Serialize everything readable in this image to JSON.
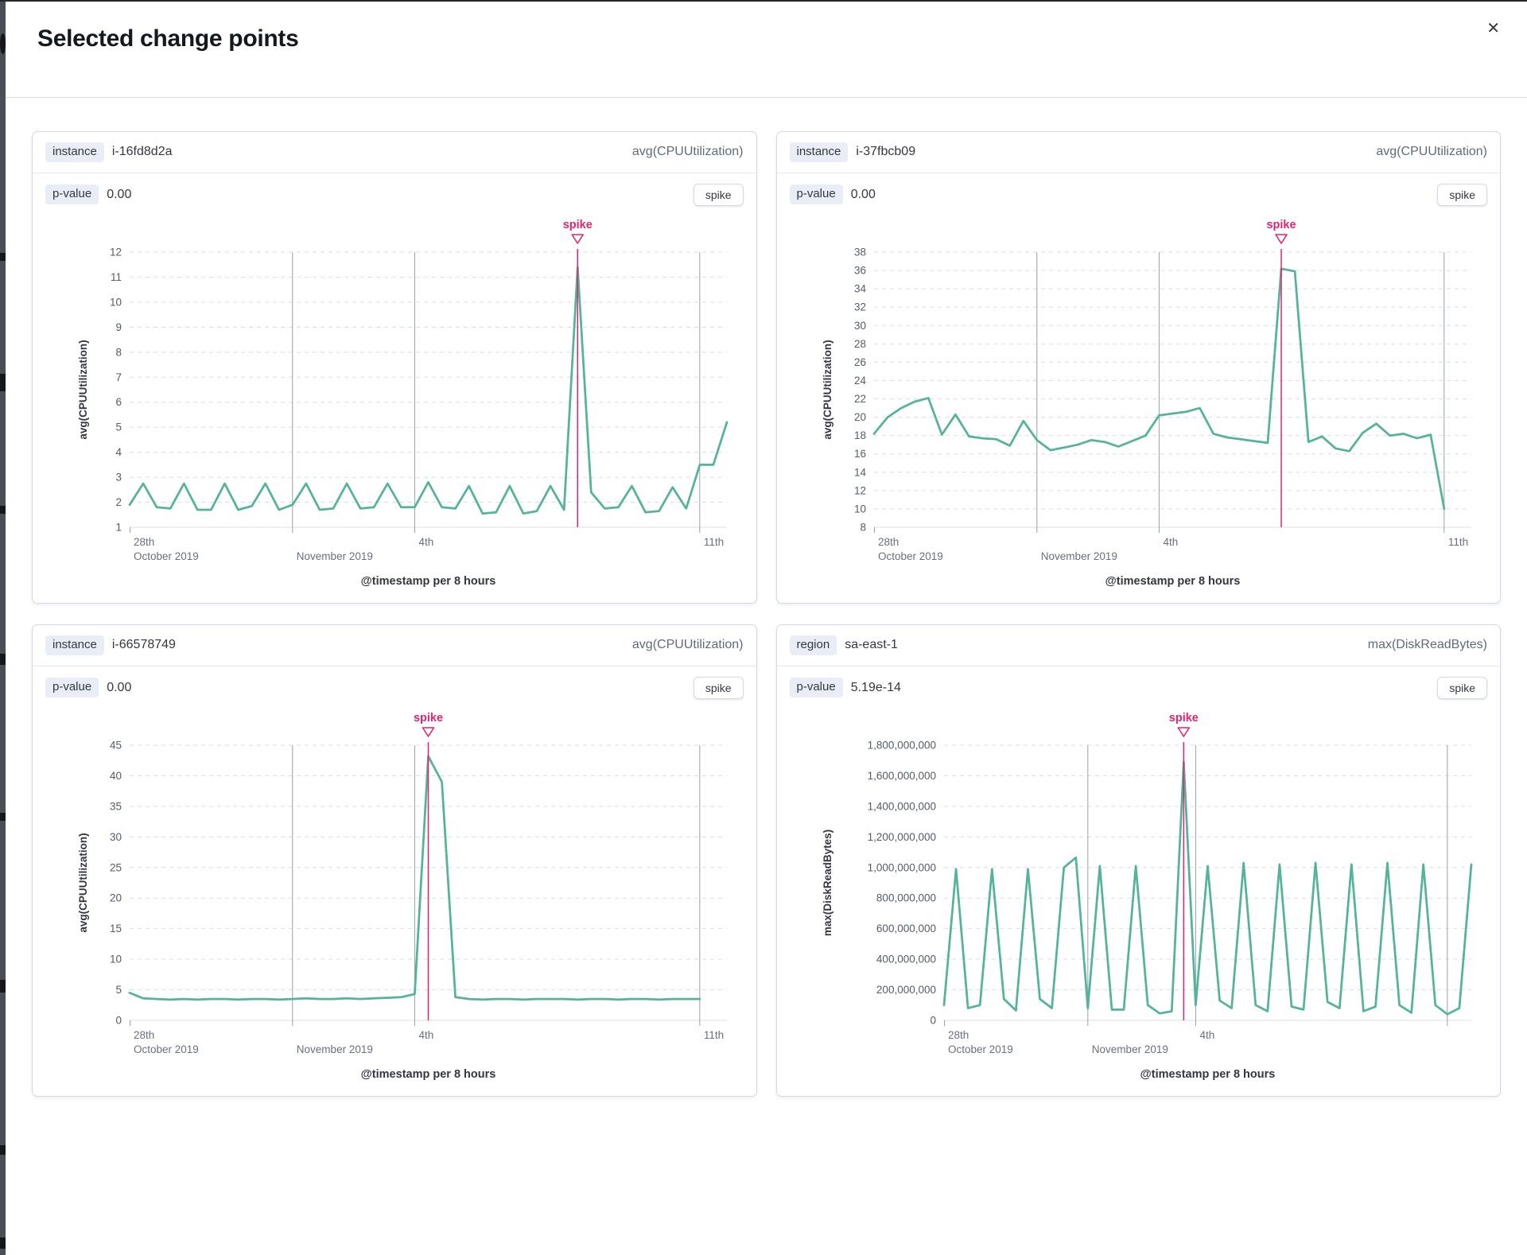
{
  "header": {
    "title": "Selected change points",
    "close_icon": "✕"
  },
  "theme": {
    "line": "#54b399",
    "accent": "#e0256f",
    "grid_dashed": "#d9dde8",
    "date_line": "#99a1ad",
    "axis_line": "#dfe3ea",
    "y_tick_text": "#545c68",
    "x_tick_text": "#69707d",
    "axis_title_text": "#343741"
  },
  "panels": [
    {
      "key_label": "instance",
      "key_value": "i-16fd8d2a",
      "metric": "avg(CPUUtilization)",
      "pvalue_label": "p-value",
      "pvalue": "0.00",
      "button_label": "spike"
    },
    {
      "key_label": "instance",
      "key_value": "i-37fbcb09",
      "metric": "avg(CPUUtilization)",
      "pvalue_label": "p-value",
      "pvalue": "0.00",
      "button_label": "spike"
    },
    {
      "key_label": "instance",
      "key_value": "i-66578749",
      "metric": "avg(CPUUtilization)",
      "pvalue_label": "p-value",
      "pvalue": "0.00",
      "button_label": "spike"
    },
    {
      "key_label": "region",
      "key_value": "sa-east-1",
      "metric": "max(DiskReadBytes)",
      "pvalue_label": "p-value",
      "pvalue": "5.19e-14",
      "button_label": "spike"
    }
  ],
  "chart_data": [
    {
      "type": "line",
      "title": "instance i-16fd8d2a avg(CPUUtilization)",
      "ylabel": "avg(CPUUtilization)",
      "xlabel": "@timestamp per 8 hours",
      "annotation": "spike",
      "spike_f": 0.75,
      "y_min": 1,
      "y_max": 12,
      "y_step": 1,
      "y_format": "plain",
      "n_slots": 45,
      "x_ticks": [
        {
          "f": 0,
          "l1": "28th",
          "l2": "October 2019",
          "tick": true
        },
        {
          "f": 0.2727,
          "l2": "November 2019",
          "line": true
        },
        {
          "f": 0.4773,
          "l1": "4th",
          "line": true
        },
        {
          "f": 0.9545,
          "l1": "11th",
          "line": true
        }
      ],
      "series": [
        1.9,
        2.75,
        1.8,
        1.75,
        2.75,
        1.7,
        1.7,
        2.75,
        1.7,
        1.85,
        2.75,
        1.7,
        1.9,
        2.75,
        1.7,
        1.75,
        2.75,
        1.75,
        1.8,
        2.75,
        1.8,
        1.8,
        2.8,
        1.8,
        1.75,
        2.65,
        1.55,
        1.6,
        2.65,
        1.55,
        1.65,
        2.65,
        1.7,
        11.4,
        2.4,
        1.75,
        1.8,
        2.65,
        1.6,
        1.65,
        2.6,
        1.75,
        3.5,
        3.5,
        5.2
      ]
    },
    {
      "type": "line",
      "title": "instance i-37fbcb09 avg(CPUUtilization)",
      "ylabel": "avg(CPUUtilization)",
      "xlabel": "@timestamp per 8 hours",
      "annotation": "spike",
      "spike_f": 0.6818,
      "y_min": 8,
      "y_max": 38,
      "y_step": 2,
      "y_format": "plain",
      "n_slots": 45,
      "x_ticks": [
        {
          "f": 0,
          "l1": "28th",
          "l2": "October 2019",
          "tick": true
        },
        {
          "f": 0.2727,
          "l2": "November 2019",
          "line": true
        },
        {
          "f": 0.4773,
          "l1": "4th",
          "line": true
        },
        {
          "f": 0.9545,
          "l1": "11th",
          "line": true
        }
      ],
      "series": [
        18.2,
        20.0,
        21.0,
        21.7,
        22.1,
        18.1,
        20.3,
        17.9,
        17.7,
        17.6,
        16.9,
        19.6,
        17.5,
        16.4,
        16.7,
        17.0,
        17.5,
        17.3,
        16.8,
        17.4,
        18.0,
        20.2,
        20.4,
        20.6,
        21.0,
        18.2,
        17.8,
        17.6,
        17.4,
        17.2,
        36.2,
        35.9,
        17.3,
        17.9,
        16.6,
        16.3,
        18.3,
        19.3,
        18.0,
        18.2,
        17.7,
        18.1,
        10.0
      ]
    },
    {
      "type": "line",
      "title": "instance i-66578749 avg(CPUUtilization)",
      "ylabel": "avg(CPUUtilization)",
      "xlabel": "@timestamp per 8 hours",
      "annotation": "spike",
      "spike_f": 0.5,
      "y_min": 0,
      "y_max": 45,
      "y_step": 5,
      "y_format": "plain",
      "n_slots": 45,
      "x_ticks": [
        {
          "f": 0,
          "l1": "28th",
          "l2": "October 2019",
          "tick": true
        },
        {
          "f": 0.2727,
          "l2": "November 2019",
          "line": true
        },
        {
          "f": 0.4773,
          "l1": "4th",
          "line": true
        },
        {
          "f": 0.9545,
          "l1": "11th",
          "line": true
        }
      ],
      "series": [
        4.5,
        3.6,
        3.5,
        3.4,
        3.5,
        3.4,
        3.5,
        3.5,
        3.4,
        3.5,
        3.5,
        3.4,
        3.5,
        3.6,
        3.5,
        3.5,
        3.6,
        3.5,
        3.6,
        3.7,
        3.8,
        4.3,
        43.2,
        39.0,
        3.8,
        3.5,
        3.4,
        3.5,
        3.5,
        3.4,
        3.5,
        3.5,
        3.5,
        3.4,
        3.5,
        3.5,
        3.4,
        3.5,
        3.5,
        3.4,
        3.5,
        3.5,
        3.5
      ]
    },
    {
      "type": "line",
      "title": "region sa-east-1 max(DiskReadBytes)",
      "ylabel": "max(DiskReadBytes)",
      "xlabel": "@timestamp per 8 hours",
      "annotation": "spike",
      "spike_f": 0.4545,
      "y_min": 0,
      "y_max": 1800000000,
      "y_step": 200000000,
      "y_format": "comma",
      "n_slots": 45,
      "x_ticks": [
        {
          "f": 0,
          "l1": "28th",
          "l2": "October 2019",
          "tick": true
        },
        {
          "f": 0.2727,
          "l2": "November 2019",
          "line": true
        },
        {
          "f": 0.4773,
          "l1": "4th",
          "line": true
        },
        {
          "f": 0.9545,
          "line": true
        }
      ],
      "series": [
        100000000,
        990000000,
        80000000,
        100000000,
        990000000,
        140000000,
        65000000,
        990000000,
        140000000,
        80000000,
        1000000000,
        1065000000,
        80000000,
        1010000000,
        70000000,
        70000000,
        1010000000,
        100000000,
        45000000,
        60000000,
        1690000000,
        100000000,
        1010000000,
        130000000,
        80000000,
        1030000000,
        100000000,
        60000000,
        1020000000,
        90000000,
        70000000,
        1030000000,
        120000000,
        80000000,
        1020000000,
        60000000,
        90000000,
        1030000000,
        100000000,
        50000000,
        1020000000,
        100000000,
        40000000,
        80000000,
        1020000000
      ]
    }
  ]
}
